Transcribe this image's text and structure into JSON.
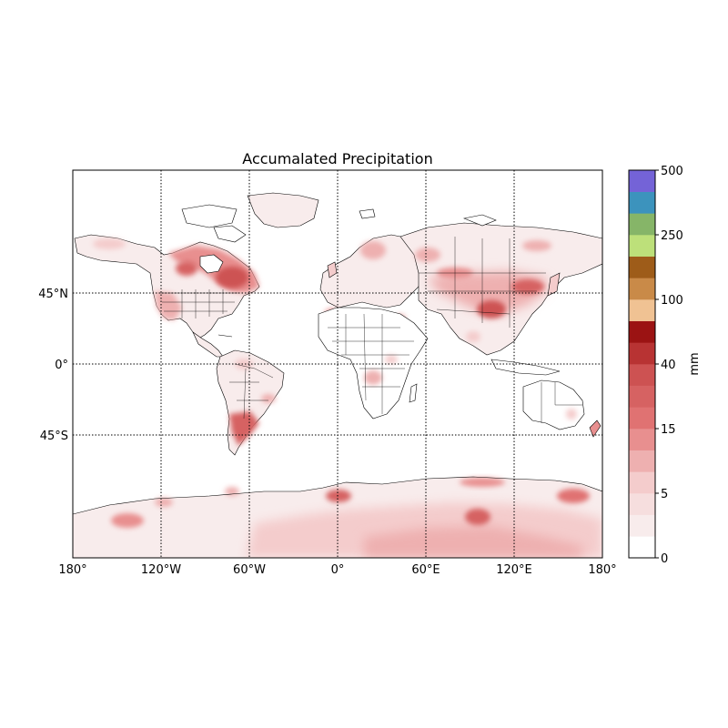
{
  "title": "Accumalated Precipitation",
  "map": {
    "projection": "Mercator",
    "lon_range": [
      -180,
      180
    ],
    "lat_range": [
      -80,
      80
    ],
    "lat_labels": [
      "45°N",
      "0°",
      "45°S"
    ],
    "lon_labels": [
      "180°",
      "120°W",
      "60°W",
      "0°",
      "60°E",
      "120°E",
      "180°"
    ],
    "parallels_deg": [
      45,
      0,
      -45
    ],
    "meridians_deg": [
      -120,
      -60,
      0,
      60,
      120
    ],
    "gridlines": "dotted",
    "coastlines": true,
    "country_borders": true,
    "precipitation_hotspots": [
      {
        "region": "Eastern Canada / Hudson Bay",
        "intensity": "high"
      },
      {
        "region": "Western United States",
        "intensity": "medium"
      },
      {
        "region": "Southern South America",
        "intensity": "medium"
      },
      {
        "region": "Central & East Asia",
        "intensity": "high"
      },
      {
        "region": "Europe / Scandinavia",
        "intensity": "medium"
      },
      {
        "region": "Southern Africa",
        "intensity": "low-medium"
      },
      {
        "region": "East Antarctica",
        "intensity": "high"
      },
      {
        "region": "West Antarctic coast",
        "intensity": "medium"
      }
    ]
  },
  "colorbar": {
    "label": "mm",
    "tick_labels": [
      "0",
      "5",
      "15",
      "40",
      "100",
      "250",
      "500"
    ],
    "levels_colors": [
      "#ffffff",
      "#f8ecec",
      "#f6dede",
      "#f4cccc",
      "#eeb0b0",
      "#e88f8f",
      "#e07272",
      "#d66262",
      "#cd5252",
      "#b83333",
      "#9b1313",
      "#f0c293",
      "#c98a48",
      "#9e5c19",
      "#bde07a",
      "#86b568",
      "#3c93bd",
      "#7463d7"
    ]
  },
  "colors": {
    "gridline": "#000000",
    "coastline": "#000000",
    "light_precip": "#f6dede",
    "medium_precip": "#e88f8f",
    "heavy_precip": "#cd5252"
  }
}
